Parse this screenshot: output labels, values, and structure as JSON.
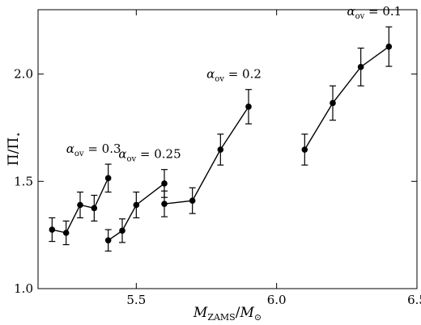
{
  "chart_data": {
    "type": "scatter",
    "xlabel": "M_ZAMS/M_⊙",
    "ylabel": "Π̄/Π̄_⋆",
    "xlim": [
      5.15,
      6.5
    ],
    "ylim": [
      1.0,
      2.3
    ],
    "xticks": [
      5.5,
      6.0,
      6.5
    ],
    "xtick_labels": [
      "5.5",
      "6.0",
      "6.5"
    ],
    "yticks": [
      1.0,
      1.5,
      2.0
    ],
    "ytick_labels": [
      "1.0",
      "1.5",
      "2.0"
    ],
    "grid": false,
    "series": [
      {
        "name": "α_ov = 0.3",
        "label_parts": {
          "symbol": "α",
          "sub": "ov",
          "rest": " = 0.3"
        },
        "points": [
          {
            "x": 5.2,
            "y": 1.275,
            "err": 0.055
          },
          {
            "x": 5.25,
            "y": 1.26,
            "err": 0.055
          },
          {
            "x": 5.3,
            "y": 1.39,
            "err": 0.06
          },
          {
            "x": 5.35,
            "y": 1.375,
            "err": 0.06
          },
          {
            "x": 5.4,
            "y": 1.515,
            "err": 0.065
          }
        ]
      },
      {
        "name": "α_ov = 0.25",
        "label_parts": {
          "symbol": "α",
          "sub": "ov",
          "rest": " = 0.25"
        },
        "points": [
          {
            "x": 5.4,
            "y": 1.225,
            "err": 0.05
          },
          {
            "x": 5.45,
            "y": 1.27,
            "err": 0.055
          },
          {
            "x": 5.5,
            "y": 1.39,
            "err": 0.06
          },
          {
            "x": 5.6,
            "y": 1.49,
            "err": 0.065
          }
        ]
      },
      {
        "name": "α_ov = 0.2",
        "label_parts": {
          "symbol": "α",
          "sub": "ov",
          "rest": " = 0.2"
        },
        "points": [
          {
            "x": 5.6,
            "y": 1.395,
            "err": 0.06
          },
          {
            "x": 5.7,
            "y": 1.41,
            "err": 0.06
          },
          {
            "x": 5.8,
            "y": 1.648,
            "err": 0.072
          },
          {
            "x": 5.9,
            "y": 1.848,
            "err": 0.08
          }
        ]
      },
      {
        "name": "α_ov = 0.1",
        "label_parts": {
          "symbol": "α",
          "sub": "ov",
          "rest": " = 0.1"
        },
        "points": [
          {
            "x": 6.1,
            "y": 1.648,
            "err": 0.072
          },
          {
            "x": 6.2,
            "y": 1.865,
            "err": 0.08
          },
          {
            "x": 6.3,
            "y": 2.033,
            "err": 0.088
          },
          {
            "x": 6.4,
            "y": 2.128,
            "err": 0.092
          }
        ]
      }
    ]
  }
}
